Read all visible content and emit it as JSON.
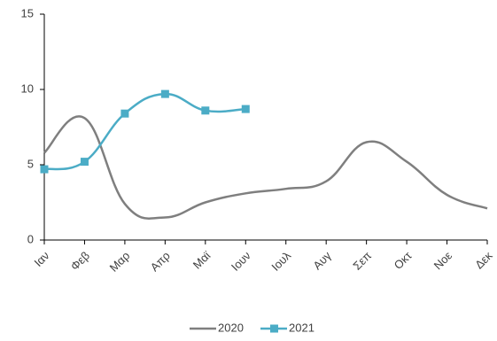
{
  "chart_data": {
    "type": "line",
    "smooth": true,
    "categories": [
      "Ιαν",
      "Φεβ",
      "Μαρ",
      "Απρ",
      "Μαϊ",
      "Ιουν",
      "Ιουλ",
      "Αυγ",
      "Σεπ",
      "Οκτ",
      "Νοε",
      "Δεκ"
    ],
    "series": [
      {
        "name": "2020",
        "color": "#7f7f7f",
        "marker": false,
        "values": [
          5.8,
          8.1,
          2.4,
          1.5,
          2.5,
          3.1,
          3.4,
          3.9,
          6.5,
          5.2,
          3.0,
          2.1
        ]
      },
      {
        "name": "2021",
        "color": "#4bacc6",
        "marker": true,
        "values": [
          4.7,
          5.2,
          8.4,
          9.7,
          8.6,
          8.7,
          null,
          null,
          null,
          null,
          null,
          null
        ]
      }
    ],
    "ylim": [
      0,
      15
    ],
    "yticks": [
      0,
      5,
      10,
      15
    ],
    "grid": false,
    "legend": "bottom"
  }
}
